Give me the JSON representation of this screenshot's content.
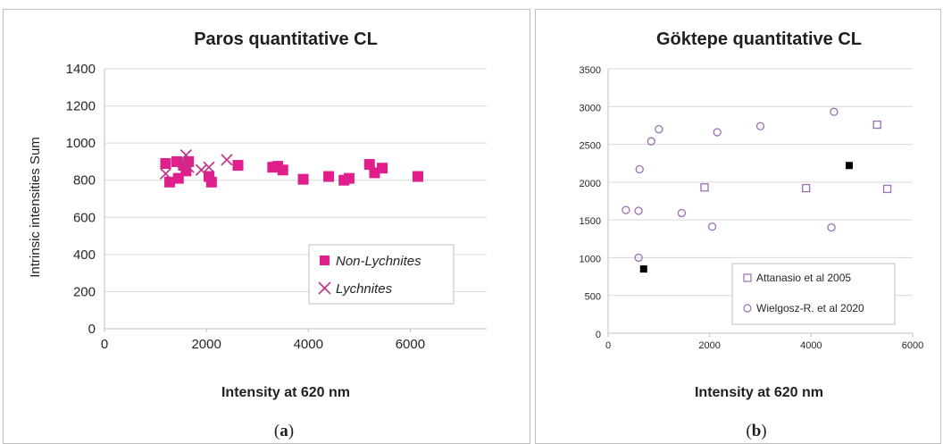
{
  "chart_data": [
    {
      "type": "scatter",
      "panel": "(a)",
      "caption_letter": "a",
      "title": "Paros quantitative CL",
      "xlabel": "Intensity at 620 nm",
      "ylabel": "Intrinsic intensities Sum",
      "xlim": [
        0,
        7500
      ],
      "ylim": [
        0,
        1400
      ],
      "xticks": [
        0,
        2000,
        4000,
        6000
      ],
      "yticks": [
        0,
        200,
        400,
        600,
        800,
        1000,
        1200,
        1400
      ],
      "grid": "horizontal",
      "legend_position": "bottom-right",
      "series": [
        {
          "name": "Non-Lychnites",
          "marker": "square-filled",
          "color": "#e01e8c",
          "points": [
            [
              1200,
              890
            ],
            [
              1280,
              790
            ],
            [
              1420,
              900
            ],
            [
              1450,
              810
            ],
            [
              1550,
              880
            ],
            [
              1600,
              850
            ],
            [
              1650,
              900
            ],
            [
              2050,
              820
            ],
            [
              2100,
              790
            ],
            [
              2620,
              880
            ],
            [
              3300,
              870
            ],
            [
              3400,
              875
            ],
            [
              3500,
              855
            ],
            [
              3900,
              805
            ],
            [
              4400,
              820
            ],
            [
              4700,
              800
            ],
            [
              4800,
              810
            ],
            [
              5200,
              885
            ],
            [
              5300,
              840
            ],
            [
              5450,
              865
            ],
            [
              6150,
              820
            ]
          ]
        },
        {
          "name": "Lychnites",
          "marker": "x",
          "color": "#c0338a",
          "points": [
            [
              1200,
              835
            ],
            [
              1550,
              895
            ],
            [
              1600,
              935
            ],
            [
              1650,
              870
            ],
            [
              1900,
              855
            ],
            [
              2050,
              870
            ],
            [
              2400,
              910
            ]
          ]
        }
      ]
    },
    {
      "type": "scatter",
      "panel": "(b)",
      "caption_letter": "b",
      "title": "Göktepe quantitative CL",
      "xlabel": "Intensity at 620 nm",
      "ylabel": "",
      "xlim": [
        0,
        6000
      ],
      "ylim": [
        0,
        3500
      ],
      "xticks": [
        0,
        2000,
        4000,
        6000
      ],
      "yticks": [
        0,
        500,
        1000,
        1500,
        2000,
        2500,
        3000,
        3500
      ],
      "grid": "horizontal",
      "legend_position": "bottom-right",
      "series": [
        {
          "name": "Attanasio et al 2005",
          "marker": "square-open",
          "color": "#9b6fb5",
          "points": [
            [
              1900,
              1930
            ],
            [
              3900,
              1920
            ],
            [
              5300,
              2760
            ],
            [
              5500,
              1910
            ]
          ]
        },
        {
          "name": "Wielgosz-R. et al 2020",
          "marker": "circle-open",
          "color": "#9b6fb5",
          "points": [
            [
              350,
              1630
            ],
            [
              600,
              1620
            ],
            [
              600,
              1000
            ],
            [
              620,
              2170
            ],
            [
              850,
              2540
            ],
            [
              1000,
              2700
            ],
            [
              1450,
              1590
            ],
            [
              2050,
              1410
            ],
            [
              2150,
              2660
            ],
            [
              3000,
              2740
            ],
            [
              4400,
              1400
            ],
            [
              4450,
              2930
            ]
          ]
        },
        {
          "name": "",
          "marker": "square-filled",
          "color": "#000000",
          "points": [
            [
              700,
              850
            ],
            [
              4750,
              2220
            ]
          ]
        }
      ]
    }
  ]
}
